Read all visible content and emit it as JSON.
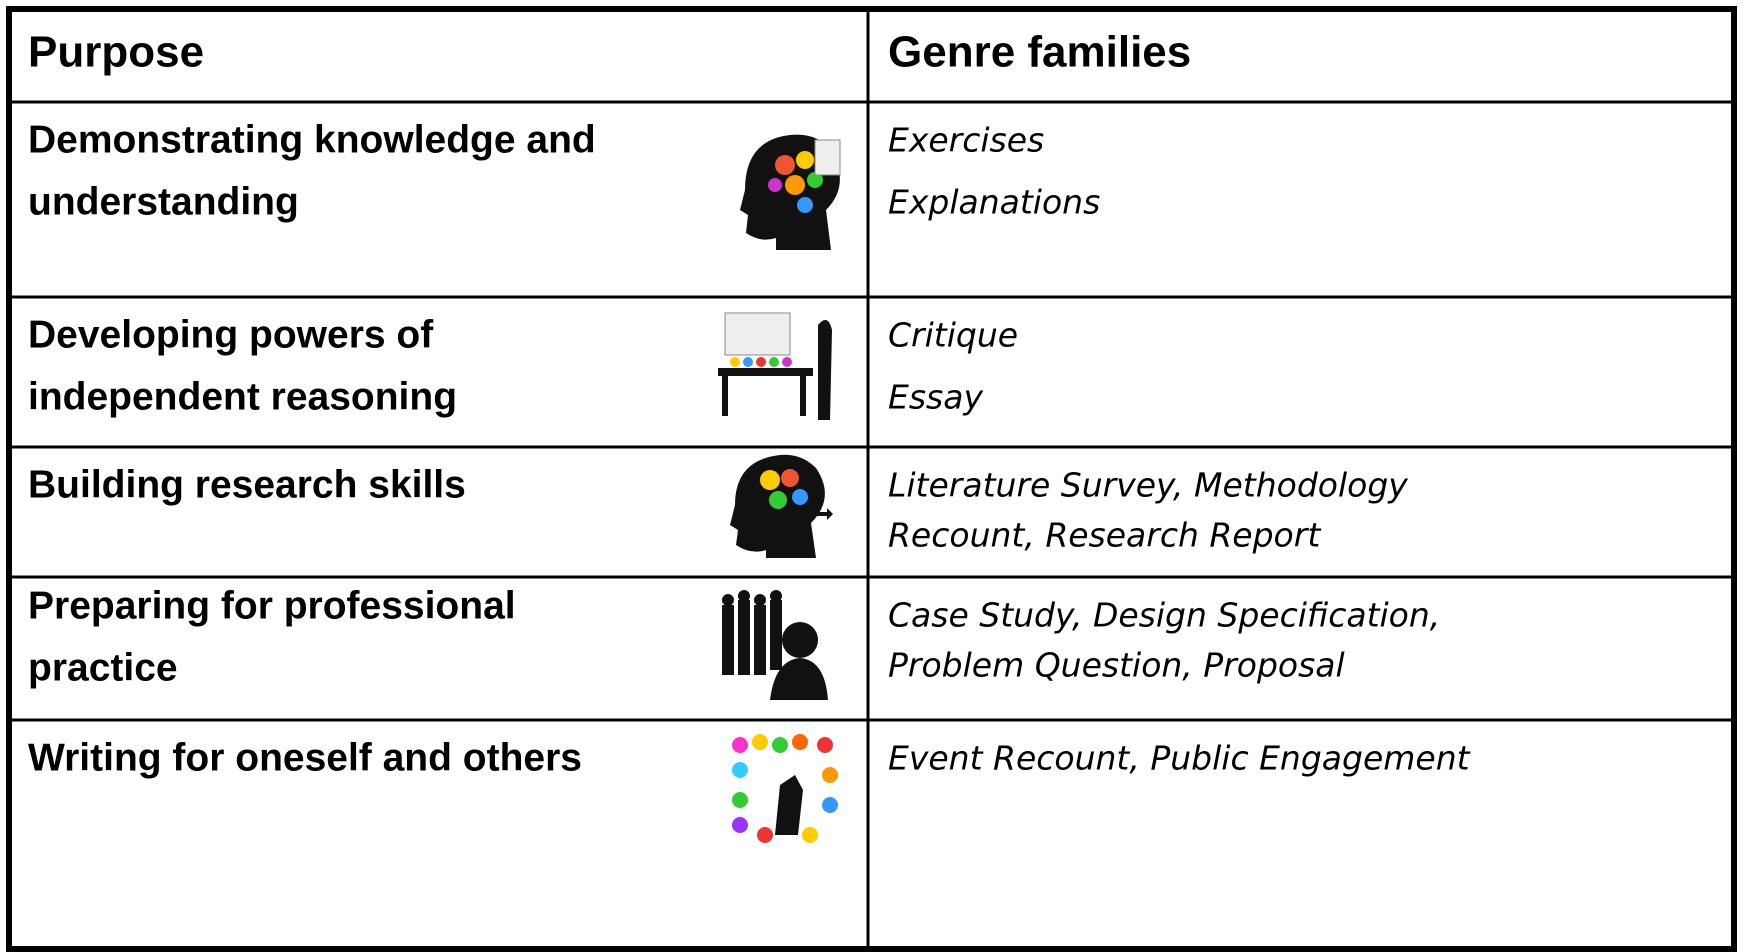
{
  "table": {
    "header": [
      "Purpose",
      "Genre families"
    ],
    "rows": [
      {
        "purpose": [
          "Demonstrating knowledge and",
          "understanding"
        ],
        "genres": [
          "Exercises",
          "Explanations"
        ]
      },
      {
        "purpose": [
          "Developing powers of",
          "independent reasoning"
        ],
        "genres": [
          "Critique",
          "Essay"
        ]
      },
      {
        "purpose": [
          "Building research skills"
        ],
        "genres": [
          "Literature Survey, Methodology",
          "Recount, Research Report"
        ]
      },
      {
        "purpose": [
          "Preparing for professional",
          "practice"
        ],
        "genres": [
          "Case Study, Design Specification,",
          "Problem Question, Proposal"
        ]
      },
      {
        "purpose": [
          "Writing for oneself and others"
        ],
        "genres": [
          "Event Recount, Public Engagement"
        ]
      }
    ]
  }
}
